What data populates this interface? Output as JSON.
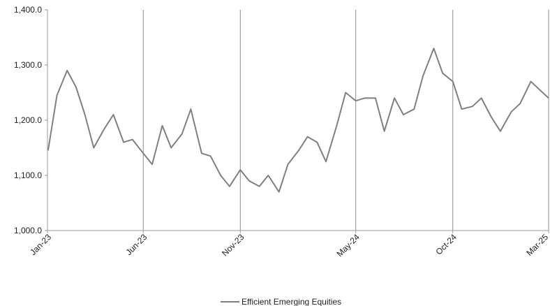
{
  "chart_data": {
    "type": "line",
    "title": "",
    "xlabel": "",
    "ylabel": "",
    "ylim": [
      1000,
      1400
    ],
    "y_ticks": [
      "1,000.0",
      "1,100.0",
      "1,200.0",
      "1,300.0",
      "1,400.0"
    ],
    "y_tick_values": [
      1000,
      1100,
      1200,
      1300,
      1400
    ],
    "x_ticks": [
      "Jan-23",
      "Jun-23",
      "Nov-23",
      "May-24",
      "Oct-24",
      "Mar-25"
    ],
    "x_tick_values": [
      "2023-01",
      "2023-06",
      "2023-11",
      "2024-05",
      "2024-10",
      "2025-03"
    ],
    "grid": "vertical lines at x ticks",
    "legend_position": "bottom",
    "series": [
      {
        "name": "Efficient Emerging Equities",
        "color": "#808080",
        "x": [
          "2023-01-02",
          "2023-01-16",
          "2023-02-01",
          "2023-02-15",
          "2023-03-01",
          "2023-03-15",
          "2023-04-01",
          "2023-04-15",
          "2023-05-01",
          "2023-05-15",
          "2023-06-01",
          "2023-06-15",
          "2023-07-01",
          "2023-07-15",
          "2023-08-01",
          "2023-08-15",
          "2023-09-01",
          "2023-09-15",
          "2023-10-01",
          "2023-10-15",
          "2023-11-01",
          "2023-11-15",
          "2023-12-01",
          "2023-12-15",
          "2024-01-01",
          "2024-01-15",
          "2024-02-01",
          "2024-02-15",
          "2024-03-01",
          "2024-03-15",
          "2024-04-01",
          "2024-04-15",
          "2024-05-01",
          "2024-05-15",
          "2024-06-01",
          "2024-06-15",
          "2024-07-01",
          "2024-07-15",
          "2024-08-01",
          "2024-08-15",
          "2024-09-01",
          "2024-09-15",
          "2024-10-01",
          "2024-10-15",
          "2024-11-01",
          "2024-11-15",
          "2024-12-01",
          "2024-12-15",
          "2025-01-01",
          "2025-01-15",
          "2025-02-01",
          "2025-02-15",
          "2025-03-01"
        ],
        "values": [
          1145,
          1245,
          1290,
          1260,
          1210,
          1150,
          1185,
          1210,
          1160,
          1165,
          1140,
          1120,
          1190,
          1150,
          1175,
          1220,
          1140,
          1135,
          1100,
          1080,
          1110,
          1090,
          1080,
          1100,
          1070,
          1120,
          1145,
          1170,
          1160,
          1125,
          1190,
          1250,
          1235,
          1240,
          1240,
          1180,
          1240,
          1210,
          1220,
          1280,
          1330,
          1285,
          1270,
          1220,
          1225,
          1240,
          1205,
          1180,
          1215,
          1230,
          1270,
          1255,
          1240
        ]
      }
    ]
  }
}
